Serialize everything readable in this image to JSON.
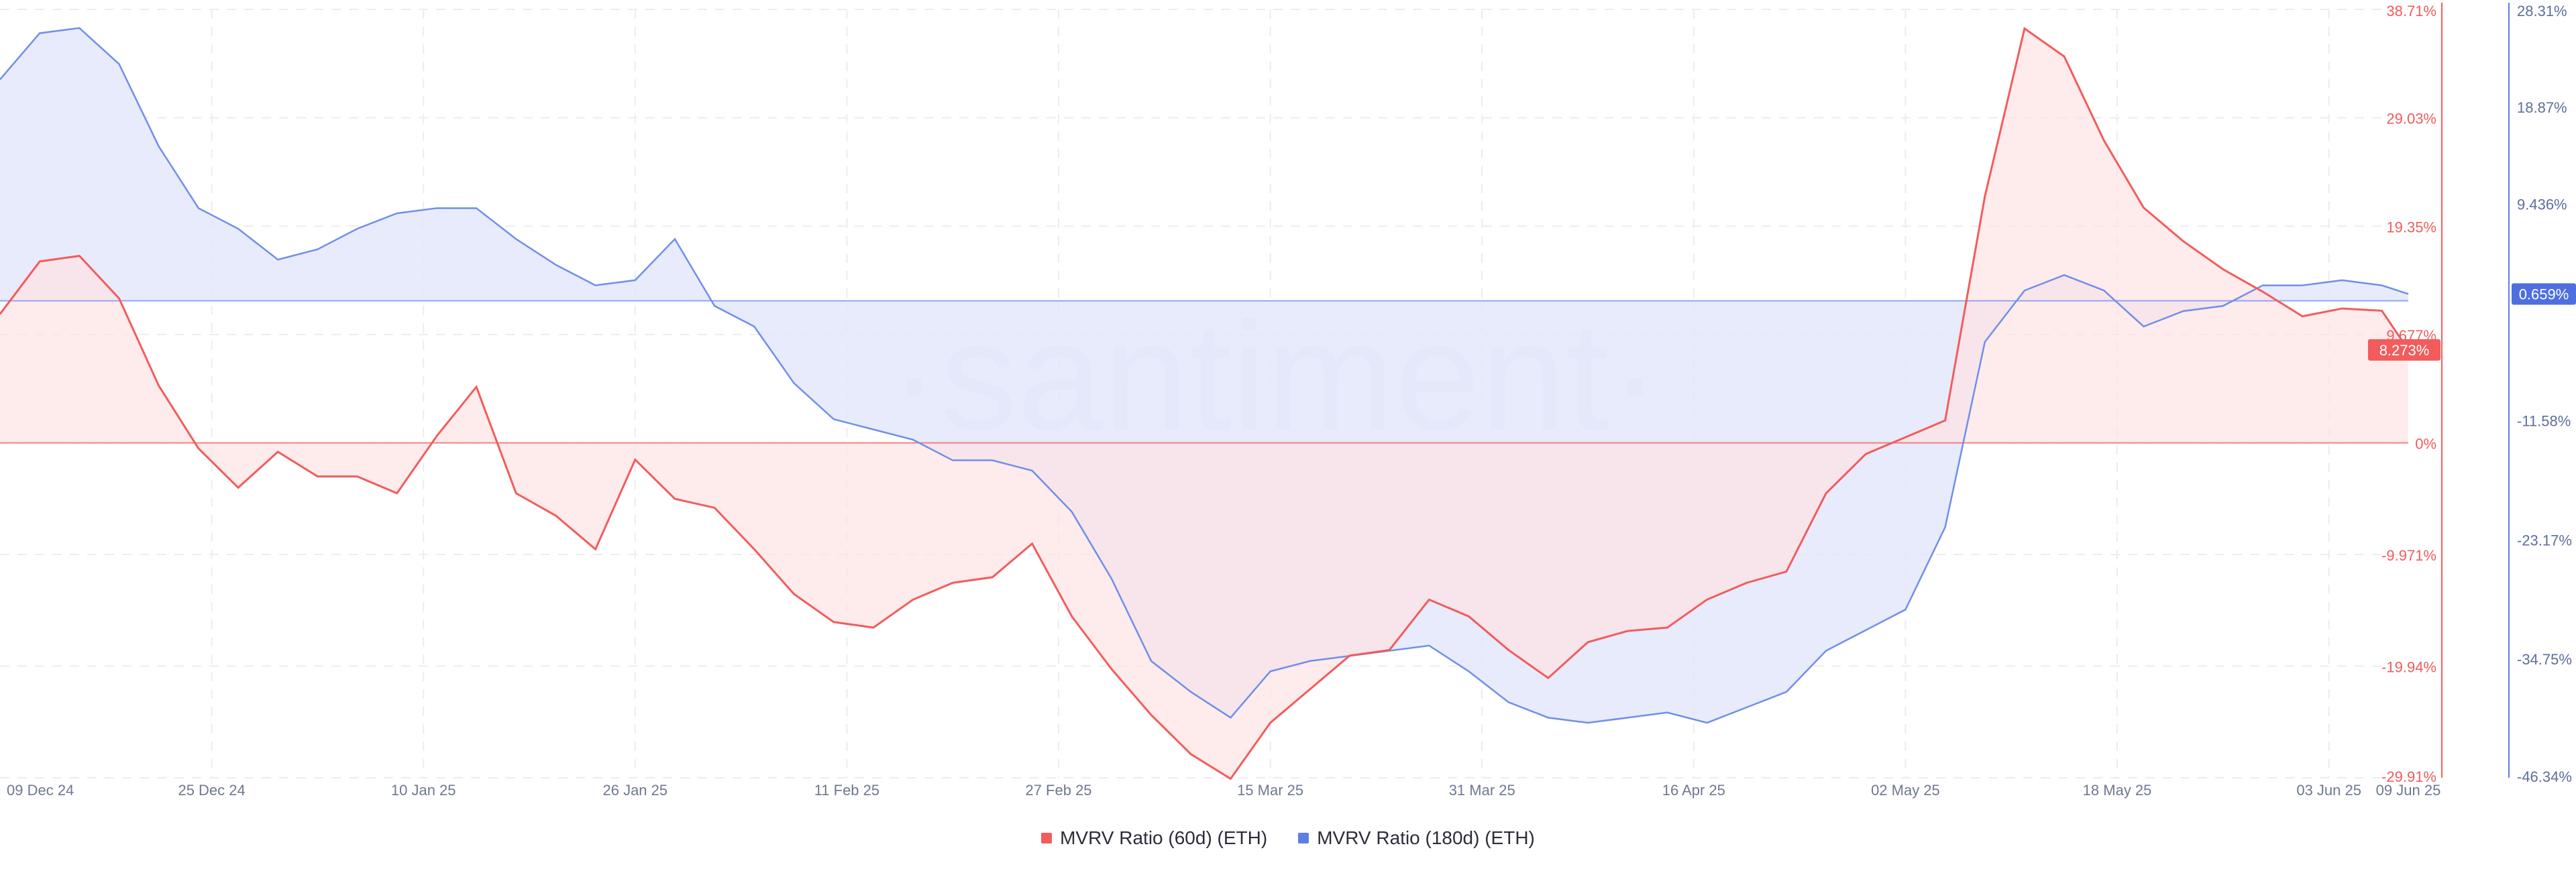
{
  "chart_data": {
    "type": "area",
    "watermark": "·santiment·",
    "x": [
      "09 Dec 24",
      "12 Dec 24",
      "15 Dec 24",
      "18 Dec 24",
      "21 Dec 24",
      "24 Dec 24",
      "27 Dec 24",
      "30 Dec 24",
      "02 Jan 25",
      "05 Jan 25",
      "08 Jan 25",
      "11 Jan 25",
      "14 Jan 25",
      "17 Jan 25",
      "20 Jan 25",
      "23 Jan 25",
      "26 Jan 25",
      "29 Jan 25",
      "01 Feb 25",
      "04 Feb 25",
      "07 Feb 25",
      "10 Feb 25",
      "13 Feb 25",
      "16 Feb 25",
      "19 Feb 25",
      "22 Feb 25",
      "25 Feb 25",
      "28 Feb 25",
      "03 Mar 25",
      "06 Mar 25",
      "09 Mar 25",
      "12 Mar 25",
      "15 Mar 25",
      "18 Mar 25",
      "21 Mar 25",
      "24 Mar 25",
      "27 Mar 25",
      "30 Mar 25",
      "02 Apr 25",
      "05 Apr 25",
      "08 Apr 25",
      "11 Apr 25",
      "14 Apr 25",
      "17 Apr 25",
      "20 Apr 25",
      "23 Apr 25",
      "26 Apr 25",
      "29 Apr 25",
      "02 May 25",
      "05 May 25",
      "08 May 25",
      "11 May 25",
      "14 May 25",
      "17 May 25",
      "20 May 25",
      "23 May 25",
      "26 May 25",
      "29 May 25",
      "01 Jun 25",
      "04 Jun 25",
      "07 Jun 25",
      "09 Jun 25"
    ],
    "x_ticks": [
      "09 Dec 24",
      "25 Dec 24",
      "10 Jan 25",
      "26 Jan 25",
      "11 Feb 25",
      "27 Feb 25",
      "15 Mar 25",
      "31 Mar 25",
      "16 Apr 25",
      "02 May 25",
      "18 May 25",
      "03 Jun 25",
      "09 Jun 25"
    ],
    "y_left": {
      "ticks": [
        "38.71%",
        "29.03%",
        "19.35%",
        "9.677%",
        "0%",
        "-9.971%",
        "-19.94%",
        "-29.91%"
      ],
      "range": [
        -29.91,
        38.71
      ],
      "color": "#f25c5c"
    },
    "y_right": {
      "ticks": [
        "28.31%",
        "18.87%",
        "9.436%",
        "-11.58%",
        "-23.17%",
        "-34.75%",
        "-46.34%"
      ],
      "range": [
        -46.34,
        28.31
      ],
      "color": "#5f7fe0"
    },
    "current_labels": {
      "mvrv_60d": "8.273%",
      "mvrv_180d": "0.659%"
    },
    "grid": true,
    "legend_position": "bottom-center",
    "series": [
      {
        "name": "MVRV Ratio (60d) (ETH)",
        "color": "#f25c5c",
        "fill": "#fde3e4",
        "axis": "left",
        "values": [
          11.5,
          16.2,
          16.7,
          12.9,
          5.1,
          -0.5,
          -4.0,
          -0.8,
          -3.0,
          -3.0,
          -4.5,
          0.6,
          5.0,
          -4.5,
          -6.5,
          -9.5,
          -1.5,
          -5.0,
          -5.8,
          -9.5,
          -13.5,
          -16.0,
          -16.5,
          -14.0,
          -12.5,
          -12.0,
          -9.0,
          -15.5,
          -20.2,
          -24.3,
          -27.8,
          -30.0,
          -25.0,
          -22.0,
          -19.0,
          -18.5,
          -14.0,
          -15.5,
          -18.5,
          -21.0,
          -17.8,
          -16.8,
          -16.5,
          -14.0,
          -12.5,
          -11.5,
          -4.5,
          -1.0,
          0.5,
          2.0,
          22.0,
          37.0,
          34.5,
          27.0,
          21.0,
          18.0,
          15.5,
          13.5,
          11.3,
          12.0,
          11.8,
          8.3
        ]
      },
      {
        "name": "MVRV Ratio (180d) (ETH)",
        "color": "#6f8fe8",
        "fill": "#e3e8fb",
        "axis": "right",
        "values": [
          21.5,
          26.0,
          26.5,
          23.0,
          15.0,
          9.0,
          7.0,
          4.0,
          5.0,
          7.0,
          8.5,
          9.0,
          9.0,
          6.0,
          3.5,
          1.5,
          2.0,
          6.0,
          -0.5,
          -2.5,
          -8.0,
          -11.5,
          -12.5,
          -13.5,
          -15.5,
          -15.5,
          -16.5,
          -20.5,
          -27.0,
          -35.0,
          -38.0,
          -40.5,
          -36.0,
          -35.0,
          -34.5,
          -34.0,
          -33.5,
          -36.0,
          -39.0,
          -40.5,
          -41.0,
          -40.5,
          -40.0,
          -41.0,
          -39.5,
          -38.0,
          -34.0,
          -32.0,
          -30.0,
          -22.0,
          -4.0,
          1.0,
          2.5,
          1.0,
          -2.5,
          -1.0,
          -0.5,
          1.5,
          1.5,
          2.0,
          1.5,
          0.66
        ]
      }
    ]
  }
}
